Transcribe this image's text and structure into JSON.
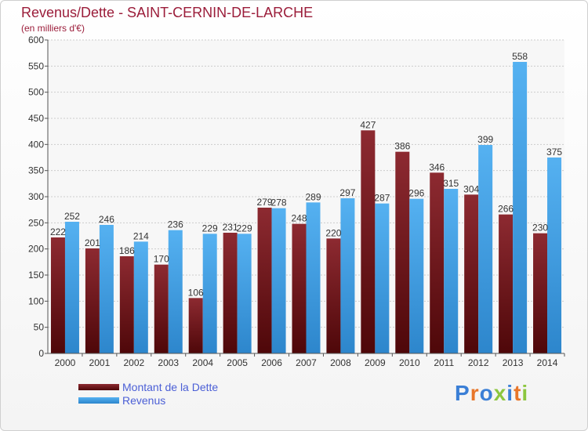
{
  "chart_data": {
    "type": "bar",
    "title": "Revenus/Dette - SAINT-CERNIN-DE-LARCHE",
    "subtitle": "(en milliers d'€)",
    "categories": [
      "2000",
      "2001",
      "2002",
      "2003",
      "2004",
      "2005",
      "2006",
      "2007",
      "2008",
      "2009",
      "2010",
      "2011",
      "2012",
      "2013",
      "2014"
    ],
    "series": [
      {
        "name": "Montant de la Dette",
        "values": [
          222,
          201,
          186,
          170,
          106,
          231,
          279,
          248,
          220,
          427,
          386,
          346,
          304,
          266,
          230
        ],
        "color": "#7a1a22"
      },
      {
        "name": "Revenus",
        "values": [
          252,
          246,
          214,
          236,
          229,
          229,
          278,
          289,
          297,
          287,
          296,
          315,
          399,
          558,
          375
        ],
        "color": "#3f9fe6"
      }
    ],
    "ylim": [
      0,
      600
    ],
    "yticks": [
      0,
      50,
      100,
      150,
      200,
      250,
      300,
      350,
      400,
      450,
      500,
      550,
      600
    ],
    "grid": true,
    "legend_position": "bottom-left"
  },
  "brand": {
    "logo_text": "Proxiti"
  },
  "colors": {
    "title": "#9b1d3a",
    "legend_text": "#4b5fd6"
  }
}
